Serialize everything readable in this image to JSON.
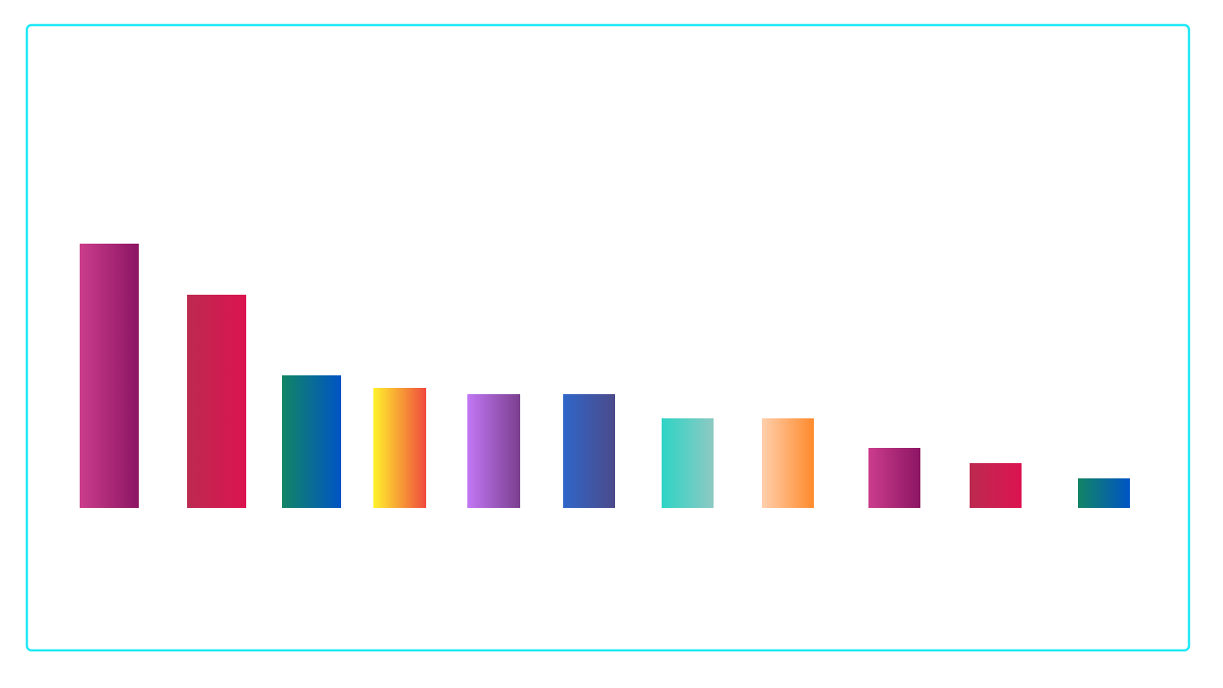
{
  "chart_data": {
    "type": "bar",
    "categories": [
      null,
      null,
      null,
      null,
      null,
      null,
      null,
      null,
      null,
      null,
      null
    ],
    "values": [
      295,
      238,
      148,
      134,
      127,
      127,
      100,
      100,
      67,
      50,
      33
    ],
    "ylim": [
      0,
      500
    ],
    "grid": false,
    "colors": [
      [
        "#cb3d8c",
        "#8b1563"
      ],
      [
        "#bc2a50",
        "#dc1350"
      ],
      [
        "#128565",
        "#0054c4"
      ],
      [
        "#fff22c",
        "#ef4a3e"
      ],
      [
        "#c277f5",
        "#7a3f8e"
      ],
      [
        "#2f66c8",
        "#4c4a8a"
      ],
      [
        "#2dd4c5",
        "#8ec9c3"
      ],
      [
        "#ffcfac",
        "#ff8a2c"
      ],
      [
        "#cb3d8c",
        "#8b1563"
      ],
      [
        "#bc2a50",
        "#dc1350"
      ],
      [
        "#128565",
        "#0054c4"
      ]
    ]
  }
}
